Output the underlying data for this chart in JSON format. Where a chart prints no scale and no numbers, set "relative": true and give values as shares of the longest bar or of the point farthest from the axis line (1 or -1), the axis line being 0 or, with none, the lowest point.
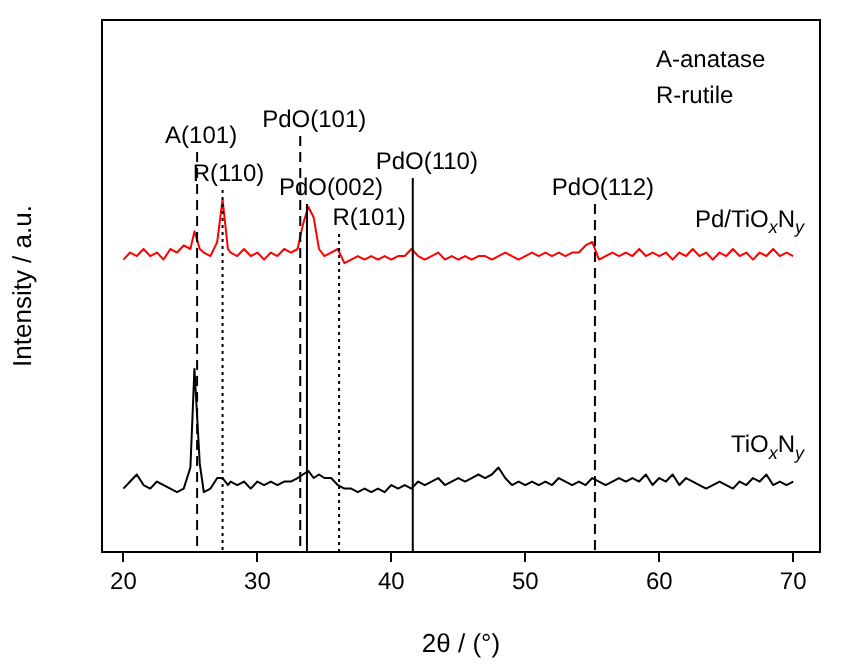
{
  "chart_data": {
    "type": "line",
    "xlabel": "2θ / (°)",
    "ylabel": "Intensity / a.u.",
    "relative": true,
    "xlim": [
      18.4,
      72
    ],
    "xticks": [
      20,
      30,
      40,
      50,
      60,
      70
    ],
    "grid": false,
    "legend": false,
    "marker": "none",
    "line_style": "solid",
    "x": [
      20,
      20.5,
      21,
      21.5,
      22,
      22.5,
      23,
      23.5,
      24,
      24.5,
      25,
      25.3,
      25.7,
      26,
      26.5,
      27,
      27.4,
      27.8,
      28,
      28.5,
      29,
      29.5,
      30,
      30.5,
      31,
      31.5,
      32,
      32.5,
      33,
      33.4,
      33.8,
      34.2,
      34.6,
      35,
      35.5,
      36,
      36.5,
      37,
      37.5,
      38,
      38.5,
      39,
      39.5,
      40,
      40.5,
      41,
      41.5,
      42,
      42.5,
      43,
      43.5,
      44,
      44.5,
      45,
      45.5,
      46,
      46.5,
      47,
      47.5,
      48,
      48.5,
      49,
      49.5,
      50,
      50.5,
      51,
      51.5,
      52,
      52.5,
      53,
      53.5,
      54,
      54.5,
      55,
      55.5,
      56,
      56.5,
      57,
      57.5,
      58,
      58.5,
      59,
      59.5,
      60,
      60.5,
      61,
      61.5,
      62,
      62.5,
      63,
      63.5,
      64,
      64.5,
      65,
      65.5,
      66,
      66.5,
      67,
      67.5,
      68,
      68.5,
      69,
      69.5,
      70
    ],
    "series": [
      {
        "name": "Pd/TiO$_{x}$N$_{y}$",
        "color": "#ff0000",
        "values": [
          0.83,
          0.85,
          0.84,
          0.86,
          0.84,
          0.85,
          0.83,
          0.86,
          0.85,
          0.87,
          0.86,
          0.91,
          0.86,
          0.85,
          0.84,
          0.88,
          1.0,
          0.86,
          0.85,
          0.84,
          0.86,
          0.84,
          0.85,
          0.83,
          0.85,
          0.84,
          0.86,
          0.85,
          0.86,
          0.93,
          0.98,
          0.95,
          0.86,
          0.84,
          0.85,
          0.86,
          0.82,
          0.83,
          0.84,
          0.83,
          0.84,
          0.83,
          0.84,
          0.83,
          0.84,
          0.84,
          0.86,
          0.84,
          0.83,
          0.84,
          0.85,
          0.83,
          0.84,
          0.83,
          0.84,
          0.83,
          0.84,
          0.84,
          0.83,
          0.84,
          0.85,
          0.84,
          0.83,
          0.84,
          0.85,
          0.84,
          0.85,
          0.84,
          0.85,
          0.84,
          0.85,
          0.85,
          0.87,
          0.88,
          0.83,
          0.84,
          0.85,
          0.84,
          0.85,
          0.84,
          0.86,
          0.84,
          0.85,
          0.84,
          0.85,
          0.83,
          0.85,
          0.84,
          0.86,
          0.84,
          0.85,
          0.83,
          0.85,
          0.84,
          0.86,
          0.84,
          0.85,
          0.83,
          0.85,
          0.84,
          0.86,
          0.84,
          0.85,
          0.84
        ]
      },
      {
        "name": "TiO$_{x}$N$_{y}$",
        "color": "#000000",
        "values": [
          0.18,
          0.2,
          0.22,
          0.19,
          0.18,
          0.2,
          0.19,
          0.18,
          0.17,
          0.18,
          0.24,
          0.52,
          0.25,
          0.17,
          0.18,
          0.21,
          0.21,
          0.19,
          0.2,
          0.19,
          0.2,
          0.18,
          0.2,
          0.19,
          0.2,
          0.19,
          0.2,
          0.2,
          0.21,
          0.22,
          0.23,
          0.21,
          0.22,
          0.21,
          0.21,
          0.19,
          0.18,
          0.18,
          0.17,
          0.18,
          0.17,
          0.18,
          0.17,
          0.19,
          0.18,
          0.19,
          0.18,
          0.2,
          0.19,
          0.2,
          0.21,
          0.19,
          0.2,
          0.21,
          0.2,
          0.21,
          0.22,
          0.21,
          0.22,
          0.24,
          0.21,
          0.19,
          0.2,
          0.19,
          0.2,
          0.19,
          0.2,
          0.19,
          0.21,
          0.2,
          0.19,
          0.2,
          0.19,
          0.21,
          0.2,
          0.19,
          0.2,
          0.21,
          0.2,
          0.21,
          0.2,
          0.22,
          0.19,
          0.21,
          0.2,
          0.22,
          0.19,
          0.21,
          0.2,
          0.19,
          0.18,
          0.19,
          0.2,
          0.19,
          0.18,
          0.2,
          0.19,
          0.21,
          0.2,
          0.22,
          0.19,
          0.2,
          0.19,
          0.2
        ]
      }
    ],
    "ref_lines": [
      {
        "axis": "x",
        "value": 25.5,
        "label": "A(101)",
        "line_style": "dashed"
      },
      {
        "axis": "x",
        "value": 27.4,
        "label": "R(110)",
        "line_style": "dotted"
      },
      {
        "axis": "x",
        "value": 33.2,
        "label": "PdO(101)",
        "line_style": "dashed"
      },
      {
        "axis": "x",
        "value": 33.7,
        "label": "PdO(002)",
        "line_style": "solid"
      },
      {
        "axis": "x",
        "value": 36.1,
        "label": "R(101)",
        "line_style": "dotted"
      },
      {
        "axis": "x",
        "value": 41.6,
        "label": "PdO(110)",
        "line_style": "solid"
      },
      {
        "axis": "x",
        "value": 55.2,
        "label": "PdO(112)",
        "line_style": "dashed"
      }
    ],
    "annotations": [
      "A-anatase",
      "R-rutile"
    ]
  }
}
